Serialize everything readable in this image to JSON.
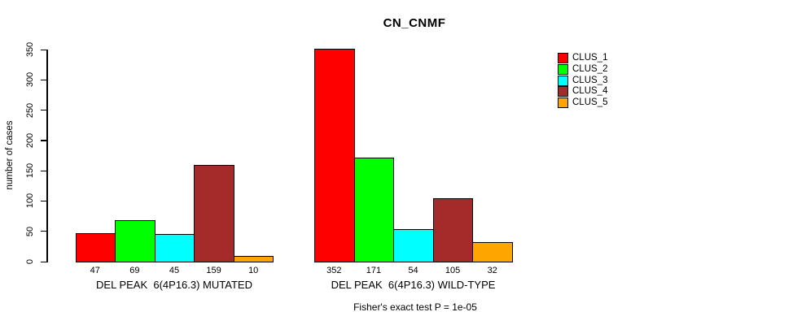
{
  "chart_data": {
    "type": "bar",
    "title": "CN_CNMF",
    "ylabel": "number of cases",
    "xlabel": "",
    "ylim": [
      0,
      350
    ],
    "yticks": [
      0,
      50,
      100,
      150,
      200,
      250,
      300,
      350
    ],
    "grid": false,
    "legend_position": "right",
    "series": [
      {
        "name": "CLUS_1",
        "color": "#FF0000"
      },
      {
        "name": "CLUS_2",
        "color": "#00FF00"
      },
      {
        "name": "CLUS_3",
        "color": "#00FFFF"
      },
      {
        "name": "CLUS_4",
        "color": "#A52A2A"
      },
      {
        "name": "CLUS_5",
        "color": "#FFA500"
      }
    ],
    "groups": [
      {
        "label": "DEL PEAK  6(4P16.3) MUTATED",
        "values": [
          47,
          69,
          45,
          159,
          10
        ]
      },
      {
        "label": "DEL PEAK  6(4P16.3) WILD-TYPE",
        "values": [
          352,
          171,
          54,
          105,
          32
        ]
      }
    ],
    "annotation": "Fisher's exact test P = 1e-05"
  }
}
